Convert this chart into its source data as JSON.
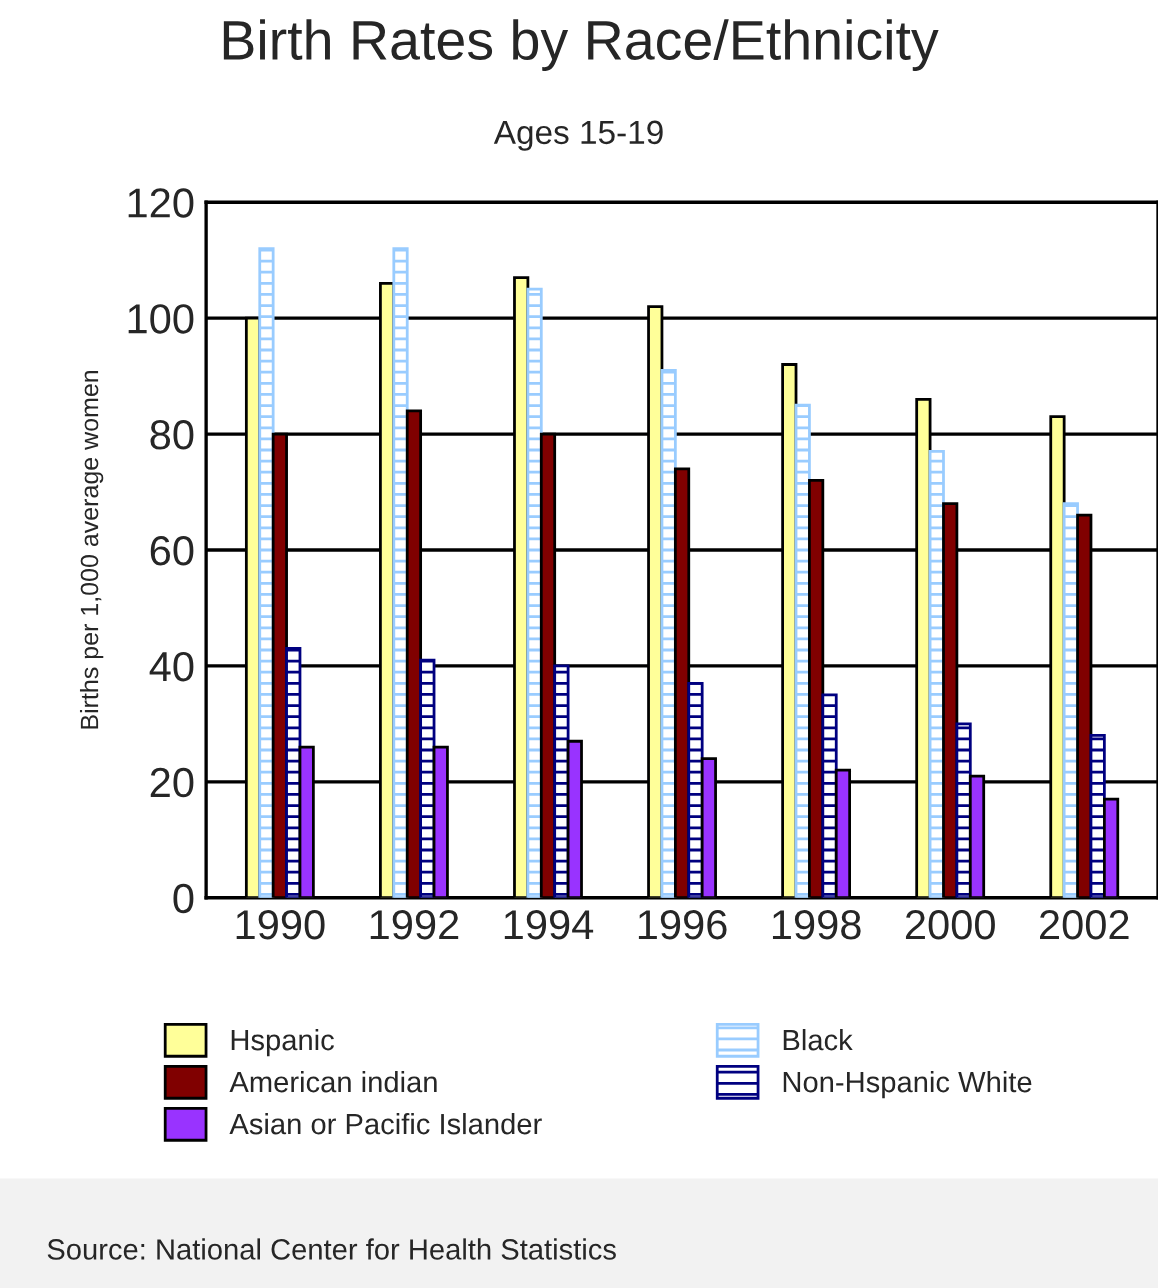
{
  "chart_data": {
    "type": "bar",
    "title": "Birth Rates by Race/Ethnicity",
    "subtitle": "Ages 15-19",
    "ylabel": "Births per 1,000 average women",
    "categories": [
      "1990",
      "1992",
      "1994",
      "1996",
      "1998",
      "2000",
      "2002"
    ],
    "series": [
      {
        "name": "Hspanic",
        "color": "#ffff99",
        "values": [
          100,
          106,
          107,
          102,
          92,
          86,
          83
        ]
      },
      {
        "name": "Black",
        "color": "#99ccff",
        "values": [
          112,
          112,
          105,
          91,
          85,
          77,
          68
        ]
      },
      {
        "name": "American indian",
        "color": "#800000",
        "values": [
          80,
          84,
          80,
          74,
          72,
          68,
          66
        ]
      },
      {
        "name": "Non-Hspanic White",
        "color": "#000080",
        "values": [
          43,
          41,
          40,
          37,
          35,
          30,
          28
        ]
      },
      {
        "name": "Asian or Pacific Islander",
        "color": "#9933ff",
        "values": [
          26,
          26,
          27,
          24,
          22,
          21,
          17
        ]
      }
    ],
    "ylim": [
      0,
      120
    ],
    "yticks": [
      0,
      20,
      40,
      60,
      80,
      100,
      120
    ],
    "grid": "y",
    "legend": "bottom",
    "annotations": [
      "Source: National Center for Health Statistics"
    ]
  }
}
